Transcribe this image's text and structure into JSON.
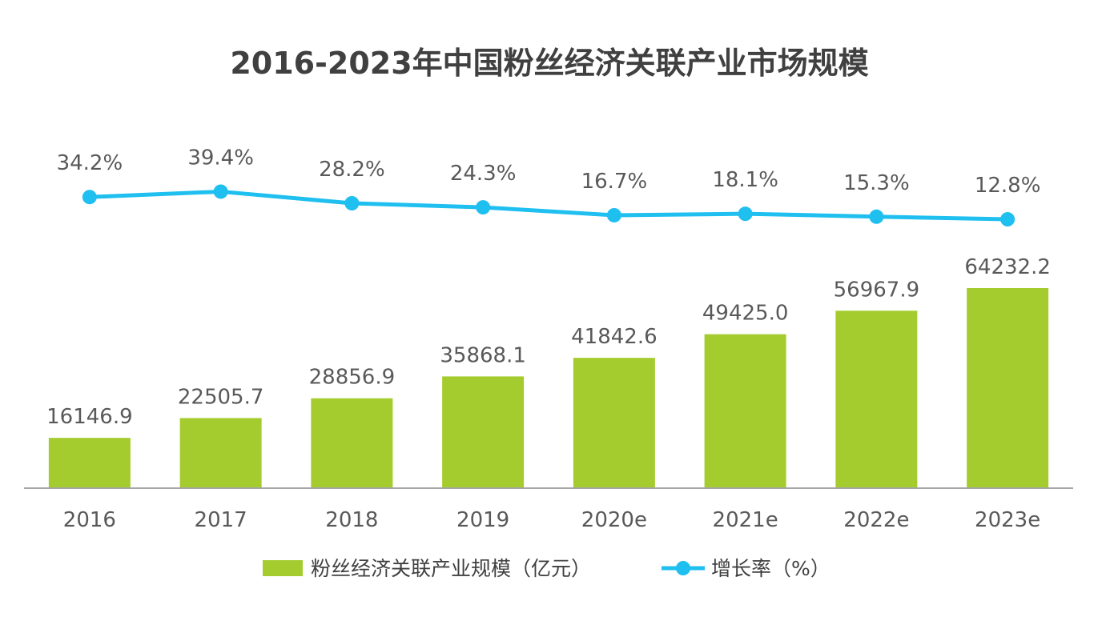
{
  "chart_data": {
    "type": "bar",
    "title": "2016-2023年中国粉丝经济关联产业市场规模",
    "categories": [
      "2016",
      "2017",
      "2018",
      "2019",
      "2020e",
      "2021e",
      "2022e",
      "2023e"
    ],
    "series": [
      {
        "name": "粉丝经济关联产业规模（亿元）",
        "type": "bar",
        "values": [
          16146.9,
          22505.7,
          28856.9,
          35868.1,
          41842.6,
          49425.0,
          56967.9,
          64232.2
        ],
        "labels": [
          "16146.9",
          "22505.7",
          "28856.9",
          "35868.1",
          "41842.6",
          "49425.0",
          "56967.9",
          "64232.2"
        ],
        "color": "#a4cc2e"
      },
      {
        "name": "增长率（%）",
        "type": "line",
        "values": [
          34.2,
          39.4,
          28.2,
          24.3,
          16.7,
          18.1,
          15.3,
          12.8
        ],
        "labels": [
          "34.2%",
          "39.4%",
          "28.2%",
          "24.3%",
          "16.7%",
          "18.1%",
          "15.3%",
          "12.8%"
        ],
        "color": "#1fbff0"
      }
    ],
    "legend": "bottom",
    "grid": false
  }
}
